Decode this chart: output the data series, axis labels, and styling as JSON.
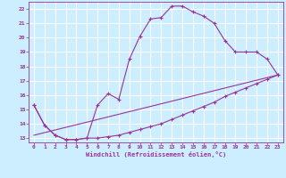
{
  "xlabel": "Windchill (Refroidissement éolien,°C)",
  "bg_color": "#cceeff",
  "grid_color": "#ffffff",
  "line_color": "#993399",
  "xlim": [
    -0.5,
    23.5
  ],
  "ylim": [
    12.7,
    22.5
  ],
  "xticks": [
    0,
    1,
    2,
    3,
    4,
    5,
    6,
    7,
    8,
    9,
    10,
    11,
    12,
    13,
    14,
    15,
    16,
    17,
    18,
    19,
    20,
    21,
    22,
    23
  ],
  "yticks": [
    13,
    14,
    15,
    16,
    17,
    18,
    19,
    20,
    21,
    22
  ],
  "line1_x": [
    0,
    1,
    2,
    3,
    4,
    5,
    6,
    7,
    8,
    9,
    10,
    11,
    12,
    13,
    14,
    15,
    16,
    17,
    18,
    19,
    20,
    21,
    22,
    23
  ],
  "line1_y": [
    15.3,
    13.9,
    13.2,
    12.9,
    12.9,
    13.0,
    15.3,
    16.1,
    15.7,
    18.5,
    20.1,
    21.3,
    21.4,
    22.2,
    22.2,
    21.8,
    21.5,
    21.0,
    19.8,
    19.0,
    19.0,
    19.0,
    18.5,
    17.4
  ],
  "line2_x": [
    0,
    1,
    2,
    3,
    4,
    5,
    6,
    7,
    8,
    9,
    10,
    11,
    12,
    13,
    14,
    15,
    16,
    17,
    18,
    19,
    20,
    21,
    22,
    23
  ],
  "line2_y": [
    15.3,
    13.9,
    13.2,
    12.9,
    12.9,
    13.0,
    13.0,
    13.1,
    13.2,
    13.4,
    13.6,
    13.8,
    14.0,
    14.3,
    14.6,
    14.9,
    15.2,
    15.5,
    15.9,
    16.2,
    16.5,
    16.8,
    17.1,
    17.4
  ],
  "line3_x": [
    0,
    23
  ],
  "line3_y": [
    13.2,
    17.4
  ]
}
